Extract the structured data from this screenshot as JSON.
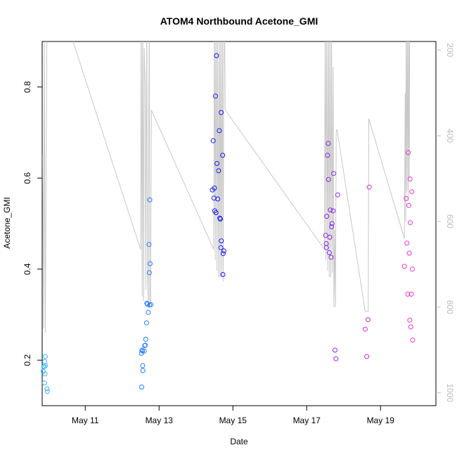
{
  "chart_data": {
    "type": "scatter",
    "title": "ATOM4 Northbound Acetone_GMI",
    "xlabel": "Date",
    "ylabel": "Acetone_GMI",
    "xlim": [
      "2016-05-09 20:00",
      "2016-05-20 12:00"
    ],
    "ylim": [
      0.1,
      0.9
    ],
    "x_ticks": [
      {
        "date": "2016-05-11",
        "label": "May 11"
      },
      {
        "date": "2016-05-13",
        "label": "May 13"
      },
      {
        "date": "2016-05-15",
        "label": "May 15"
      },
      {
        "date": "2016-05-17",
        "label": "May 17"
      },
      {
        "date": "2016-05-19",
        "label": "May 19"
      }
    ],
    "y_ticks": [
      0.2,
      0.4,
      0.6,
      0.8
    ],
    "y2_ticks": [
      200,
      400,
      600,
      800,
      1000
    ],
    "y2lim": [
      1030,
      180
    ],
    "y2_color": "#bdbdbd",
    "grid": false,
    "points": [
      {
        "x": "2016-05-09 20:40",
        "y": 0.175,
        "c": "#3fb6ff"
      },
      {
        "x": "2016-05-09 21:00",
        "y": 0.185,
        "c": "#3fb6ff"
      },
      {
        "x": "2016-05-09 21:20",
        "y": 0.186,
        "c": "#3fb6ff"
      },
      {
        "x": "2016-05-09 21:40",
        "y": 0.197,
        "c": "#3fb6ff"
      },
      {
        "x": "2016-05-09 22:00",
        "y": 0.208,
        "c": "#3fb6ff"
      },
      {
        "x": "2016-05-09 22:10",
        "y": 0.188,
        "c": "#3fb6ff"
      },
      {
        "x": "2016-05-09 21:50",
        "y": 0.17,
        "c": "#3fb6ff"
      },
      {
        "x": "2016-05-09 21:30",
        "y": 0.15,
        "c": "#3fb6ff"
      },
      {
        "x": "2016-05-09 23:10",
        "y": 0.137,
        "c": "#3fb6ff"
      },
      {
        "x": "2016-05-09 23:20",
        "y": 0.131,
        "c": "#3fb6ff"
      },
      {
        "x": "2016-05-12 12:30",
        "y": 0.215,
        "c": "#2a7df5"
      },
      {
        "x": "2016-05-12 12:50",
        "y": 0.222,
        "c": "#2a7df5"
      },
      {
        "x": "2016-05-12 13:10",
        "y": 0.22,
        "c": "#2a7df5"
      },
      {
        "x": "2016-05-12 13:20",
        "y": 0.188,
        "c": "#2a7df5"
      },
      {
        "x": "2016-05-12 13:30",
        "y": 0.177,
        "c": "#2a7df5"
      },
      {
        "x": "2016-05-12 12:40",
        "y": 0.141,
        "c": "#2a7df5"
      },
      {
        "x": "2016-05-12 14:20",
        "y": 0.22,
        "c": "#2a7df5"
      },
      {
        "x": "2016-05-12 14:40",
        "y": 0.232,
        "c": "#2a7df5"
      },
      {
        "x": "2016-05-12 15:00",
        "y": 0.233,
        "c": "#2a7df5"
      },
      {
        "x": "2016-05-12 15:20",
        "y": 0.246,
        "c": "#2a7df5"
      },
      {
        "x": "2016-05-12 15:50",
        "y": 0.282,
        "c": "#2a7df5"
      },
      {
        "x": "2016-05-12 16:00",
        "y": 0.325,
        "c": "#2a7df5"
      },
      {
        "x": "2016-05-12 16:30",
        "y": 0.323,
        "c": "#2a7df5"
      },
      {
        "x": "2016-05-12 17:00",
        "y": 0.305,
        "c": "#2a7df5"
      },
      {
        "x": "2016-05-12 17:50",
        "y": 0.321,
        "c": "#2a7df5"
      },
      {
        "x": "2016-05-12 18:40",
        "y": 0.322,
        "c": "#2a7df5"
      },
      {
        "x": "2016-05-12 17:30",
        "y": 0.454,
        "c": "#2a7df5"
      },
      {
        "x": "2016-05-12 17:40",
        "y": 0.392,
        "c": "#2a7df5"
      },
      {
        "x": "2016-05-12 18:10",
        "y": 0.412,
        "c": "#2a7df5"
      },
      {
        "x": "2016-05-12 18:00",
        "y": 0.552,
        "c": "#2a7df5"
      },
      {
        "x": "2016-05-14 10:40",
        "y": 0.574,
        "c": "#1c1cf0"
      },
      {
        "x": "2016-05-14 11:10",
        "y": 0.682,
        "c": "#1c1cf0"
      },
      {
        "x": "2016-05-14 11:40",
        "y": 0.556,
        "c": "#1c1cf0"
      },
      {
        "x": "2016-05-14 12:00",
        "y": 0.578,
        "c": "#1c1cf0"
      },
      {
        "x": "2016-05-14 12:10",
        "y": 0.528,
        "c": "#1c1cf0"
      },
      {
        "x": "2016-05-14 12:40",
        "y": 0.78,
        "c": "#1c1cf0"
      },
      {
        "x": "2016-05-14 13:20",
        "y": 0.869,
        "c": "#1c1cf0"
      },
      {
        "x": "2016-05-14 13:00",
        "y": 0.524,
        "c": "#1c1cf0"
      },
      {
        "x": "2016-05-14 13:40",
        "y": 0.632,
        "c": "#1c1cf0"
      },
      {
        "x": "2016-05-14 14:10",
        "y": 0.554,
        "c": "#1c1cf0"
      },
      {
        "x": "2016-05-14 14:40",
        "y": 0.616,
        "c": "#1c1cf0"
      },
      {
        "x": "2016-05-14 15:10",
        "y": 0.704,
        "c": "#1c1cf0"
      },
      {
        "x": "2016-05-14 15:30",
        "y": 0.512,
        "c": "#1c1cf0"
      },
      {
        "x": "2016-05-14 15:50",
        "y": 0.51,
        "c": "#1c1cf0"
      },
      {
        "x": "2016-05-14 16:20",
        "y": 0.744,
        "c": "#1c1cf0"
      },
      {
        "x": "2016-05-14 16:30",
        "y": 0.462,
        "c": "#1c1cf0"
      },
      {
        "x": "2016-05-14 16:10",
        "y": 0.447,
        "c": "#1c1cf0"
      },
      {
        "x": "2016-05-14 17:20",
        "y": 0.65,
        "c": "#1c1cf0"
      },
      {
        "x": "2016-05-14 17:40",
        "y": 0.434,
        "c": "#1c1cf0"
      },
      {
        "x": "2016-05-14 18:10",
        "y": 0.44,
        "c": "#1c1cf0"
      },
      {
        "x": "2016-05-14 17:30",
        "y": 0.388,
        "c": "#1c1cf0"
      },
      {
        "x": "2016-05-17 12:20",
        "y": 0.474,
        "c": "#8a2be2"
      },
      {
        "x": "2016-05-17 12:40",
        "y": 0.456,
        "c": "#8a2be2"
      },
      {
        "x": "2016-05-17 12:50",
        "y": 0.447,
        "c": "#8a2be2"
      },
      {
        "x": "2016-05-17 13:00",
        "y": 0.516,
        "c": "#8a2be2"
      },
      {
        "x": "2016-05-17 13:30",
        "y": 0.65,
        "c": "#8a2be2"
      },
      {
        "x": "2016-05-17 14:00",
        "y": 0.676,
        "c": "#8a2be2"
      },
      {
        "x": "2016-05-17 14:10",
        "y": 0.597,
        "c": "#8a2be2"
      },
      {
        "x": "2016-05-17 14:40",
        "y": 0.436,
        "c": "#8a2be2"
      },
      {
        "x": "2016-05-17 15:00",
        "y": 0.47,
        "c": "#8a2be2"
      },
      {
        "x": "2016-05-17 15:20",
        "y": 0.53,
        "c": "#8a2be2"
      },
      {
        "x": "2016-05-17 15:50",
        "y": 0.426,
        "c": "#8a2be2"
      },
      {
        "x": "2016-05-17 16:10",
        "y": 0.493,
        "c": "#8a2be2"
      },
      {
        "x": "2016-05-17 16:30",
        "y": 0.5,
        "c": "#8a2be2"
      },
      {
        "x": "2016-05-17 17:10",
        "y": 0.528,
        "c": "#8a2be2"
      },
      {
        "x": "2016-05-17 17:30",
        "y": 0.61,
        "c": "#8a2be2"
      },
      {
        "x": "2016-05-17 18:20",
        "y": 0.222,
        "c": "#8a2be2"
      },
      {
        "x": "2016-05-17 19:00",
        "y": 0.203,
        "c": "#8a2be2"
      },
      {
        "x": "2016-05-17 20:10",
        "y": 0.563,
        "c": "#8a2be2"
      },
      {
        "x": "2016-05-18 14:00",
        "y": 0.268,
        "c": "#d62ad6"
      },
      {
        "x": "2016-05-18 15:00",
        "y": 0.208,
        "c": "#d62ad6"
      },
      {
        "x": "2016-05-18 15:50",
        "y": 0.289,
        "c": "#d62ad6"
      },
      {
        "x": "2016-05-18 16:40",
        "y": 0.58,
        "c": "#d62ad6"
      },
      {
        "x": "2016-05-19 15:30",
        "y": 0.406,
        "c": "#e23ad0"
      },
      {
        "x": "2016-05-19 16:40",
        "y": 0.555,
        "c": "#e23ad0"
      },
      {
        "x": "2016-05-19 17:10",
        "y": 0.457,
        "c": "#e23ad0"
      },
      {
        "x": "2016-05-19 17:40",
        "y": 0.345,
        "c": "#e23ad0"
      },
      {
        "x": "2016-05-19 18:00",
        "y": 0.656,
        "c": "#e23ad0"
      },
      {
        "x": "2016-05-19 18:20",
        "y": 0.54,
        "c": "#e23ad0"
      },
      {
        "x": "2016-05-19 18:40",
        "y": 0.435,
        "c": "#e23ad0"
      },
      {
        "x": "2016-05-19 19:00",
        "y": 0.288,
        "c": "#e23ad0"
      },
      {
        "x": "2016-05-19 19:10",
        "y": 0.598,
        "c": "#e23ad0"
      },
      {
        "x": "2016-05-19 19:20",
        "y": 0.502,
        "c": "#e23ad0"
      },
      {
        "x": "2016-05-19 19:40",
        "y": 0.273,
        "c": "#e23ad0"
      },
      {
        "x": "2016-05-19 20:00",
        "y": 0.345,
        "c": "#e23ad0"
      },
      {
        "x": "2016-05-19 20:20",
        "y": 0.57,
        "c": "#e23ad0"
      },
      {
        "x": "2016-05-19 20:40",
        "y": 0.4,
        "c": "#e23ad0"
      },
      {
        "x": "2016-05-19 20:50",
        "y": 0.244,
        "c": "#e23ad0"
      }
    ],
    "altitude_line": {
      "color": "#c8c8c8",
      "points": [
        [
          "2016-05-09 20:20",
          445
        ],
        [
          "2016-05-09 20:50",
          850
        ],
        [
          "2016-05-09 21:20",
          180
        ],
        [
          "2016-05-09 22:00",
          860
        ],
        [
          "2016-05-09 23:00",
          180
        ],
        [
          "2016-05-09 23:40",
          120
        ],
        [
          "2016-05-10 16:00",
          180
        ],
        [
          "2016-05-12 12:00",
          665
        ],
        [
          "2016-05-12 12:20",
          120
        ],
        [
          "2016-05-12 13:00",
          775
        ],
        [
          "2016-05-12 13:20",
          120
        ],
        [
          "2016-05-12 13:40",
          410
        ],
        [
          "2016-05-12 14:00",
          785
        ],
        [
          "2016-05-12 14:20",
          195
        ],
        [
          "2016-05-12 15:00",
          290
        ],
        [
          "2016-05-12 15:20",
          760
        ],
        [
          "2016-05-12 16:00",
          120
        ],
        [
          "2016-05-12 16:30",
          720
        ],
        [
          "2016-05-12 17:00",
          800
        ],
        [
          "2016-05-12 17:20",
          340
        ],
        [
          "2016-05-12 17:40",
          120
        ],
        [
          "2016-05-12 18:00",
          800
        ],
        [
          "2016-05-12 18:30",
          780
        ],
        [
          "2016-05-12 19:00",
          340
        ],
        [
          "2016-05-14 11:30",
          665
        ],
        [
          "2016-05-14 12:00",
          120
        ],
        [
          "2016-05-14 12:30",
          690
        ],
        [
          "2016-05-14 13:00",
          120
        ],
        [
          "2016-05-14 13:40",
          715
        ],
        [
          "2016-05-14 14:00",
          120
        ],
        [
          "2016-05-14 14:40",
          730
        ],
        [
          "2016-05-14 15:10",
          120
        ],
        [
          "2016-05-14 15:40",
          730
        ],
        [
          "2016-05-14 16:10",
          120
        ],
        [
          "2016-05-14 16:40",
          730
        ],
        [
          "2016-05-14 17:10",
          120
        ],
        [
          "2016-05-14 17:40",
          740
        ],
        [
          "2016-05-14 18:10",
          140
        ],
        [
          "2016-05-14 18:40",
          165
        ],
        [
          "2016-05-14 19:00",
          340
        ],
        [
          "2016-05-17 11:30",
          665
        ],
        [
          "2016-05-17 12:00",
          120
        ],
        [
          "2016-05-17 12:30",
          690
        ],
        [
          "2016-05-17 13:00",
          120
        ],
        [
          "2016-05-17 13:40",
          715
        ],
        [
          "2016-05-17 14:10",
          120
        ],
        [
          "2016-05-17 14:40",
          730
        ],
        [
          "2016-05-17 15:10",
          120
        ],
        [
          "2016-05-17 15:40",
          730
        ],
        [
          "2016-05-17 16:10",
          120
        ],
        [
          "2016-05-17 16:40",
          720
        ],
        [
          "2016-05-17 17:10",
          240
        ],
        [
          "2016-05-17 17:40",
          800
        ],
        [
          "2016-05-17 18:10",
          620
        ],
        [
          "2016-05-17 18:40",
          800
        ],
        [
          "2016-05-17 19:10",
          390
        ],
        [
          "2016-05-17 19:40",
          385
        ],
        [
          "2016-05-18 14:00",
          810
        ],
        [
          "2016-05-18 16:00",
          810
        ],
        [
          "2016-05-18 16:20",
          360
        ],
        [
          "2016-05-19 15:30",
          640
        ],
        [
          "2016-05-19 16:00",
          300
        ],
        [
          "2016-05-19 16:20",
          600
        ],
        [
          "2016-05-19 16:40",
          120
        ],
        [
          "2016-05-19 17:10",
          530
        ],
        [
          "2016-05-19 17:30",
          120
        ],
        [
          "2016-05-19 18:00",
          550
        ],
        [
          "2016-05-19 18:20",
          120
        ],
        [
          "2016-05-19 18:40",
          500
        ],
        [
          "2016-05-19 19:00",
          120
        ]
      ]
    }
  }
}
